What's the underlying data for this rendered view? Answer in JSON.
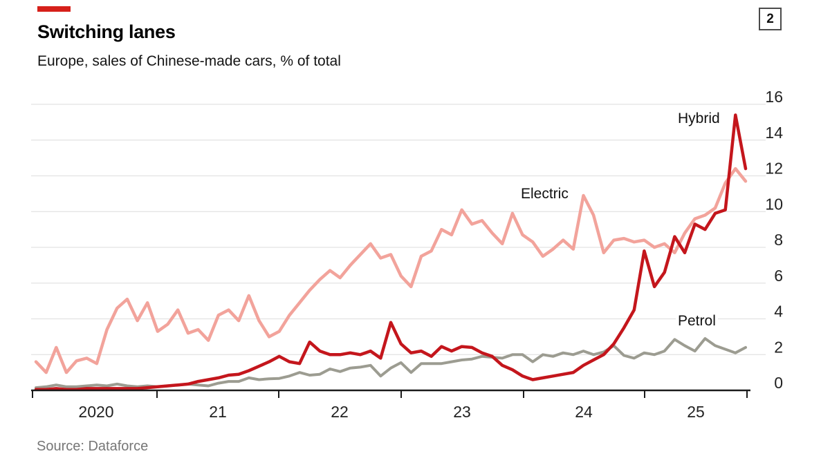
{
  "page_badge": "2",
  "footer": {
    "source": "Source: Dataforce"
  },
  "chart_data": {
    "type": "line",
    "title": "Switching lanes",
    "subtitle": "Europe, sales of Chinese-made cars, % of total",
    "source": "Source: Dataforce",
    "frequency": "monthly",
    "x_start": "2020-01",
    "x_end": "2025-11",
    "x_tick_labels": [
      "2020",
      "21",
      "22",
      "23",
      "24",
      "25"
    ],
    "y_ticks": [
      0,
      2,
      4,
      6,
      8,
      10,
      12,
      14,
      16
    ],
    "ylim": [
      0,
      16
    ],
    "grid": "horizontal",
    "legend_position": "inline-annotations",
    "colors": {
      "accent_red": "#d6201a",
      "hybrid": "#c4161c",
      "electric": "#f2a39b",
      "petrol": "#9c9c91",
      "gridline": "#e2e2e2",
      "axis": "#1a1a1a"
    },
    "series": [
      {
        "name": "Electric",
        "color": "#f2a39b",
        "values": [
          1.6,
          1.0,
          2.4,
          1.0,
          1.65,
          1.8,
          1.5,
          3.4,
          4.6,
          5.1,
          3.9,
          4.9,
          3.3,
          3.7,
          4.5,
          3.2,
          3.4,
          2.8,
          4.2,
          4.5,
          3.9,
          5.3,
          3.9,
          3.0,
          3.3,
          4.2,
          4.9,
          5.6,
          6.2,
          6.7,
          6.3,
          7.0,
          7.6,
          8.2,
          7.4,
          7.6,
          6.4,
          5.8,
          7.5,
          7.8,
          9.0,
          8.7,
          10.1,
          9.3,
          9.5,
          8.8,
          8.2,
          9.9,
          8.7,
          8.3,
          7.5,
          7.9,
          8.4,
          7.9,
          10.9,
          9.8,
          7.7,
          8.4,
          8.5,
          8.3,
          8.4,
          8.0,
          8.2,
          7.7,
          8.8,
          9.6,
          9.8,
          10.2,
          11.6,
          12.4,
          11.7
        ]
      },
      {
        "name": "Hybrid",
        "color": "#c4161c",
        "values": [
          0.05,
          0.05,
          0.1,
          0.05,
          0.05,
          0.1,
          0.1,
          0.1,
          0.1,
          0.1,
          0.1,
          0.15,
          0.2,
          0.25,
          0.3,
          0.35,
          0.5,
          0.6,
          0.7,
          0.85,
          0.9,
          1.1,
          1.35,
          1.6,
          1.9,
          1.6,
          1.5,
          2.7,
          2.2,
          2.0,
          2.0,
          2.1,
          2.0,
          2.2,
          1.8,
          3.8,
          2.6,
          2.1,
          2.2,
          1.9,
          2.45,
          2.2,
          2.45,
          2.4,
          2.1,
          1.9,
          1.4,
          1.15,
          0.8,
          0.6,
          0.7,
          0.8,
          0.9,
          1.0,
          1.4,
          1.7,
          2.0,
          2.6,
          3.5,
          4.5,
          7.8,
          5.8,
          6.6,
          8.6,
          7.7,
          9.3,
          9.0,
          9.9,
          10.1,
          15.4,
          12.4
        ]
      },
      {
        "name": "Petrol",
        "color": "#9c9c91",
        "values": [
          0.15,
          0.2,
          0.3,
          0.2,
          0.2,
          0.25,
          0.3,
          0.25,
          0.35,
          0.25,
          0.2,
          0.25,
          0.2,
          0.25,
          0.3,
          0.35,
          0.3,
          0.25,
          0.4,
          0.5,
          0.5,
          0.7,
          0.6,
          0.65,
          0.67,
          0.8,
          1.0,
          0.85,
          0.9,
          1.2,
          1.05,
          1.25,
          1.3,
          1.4,
          0.8,
          1.25,
          1.55,
          1.0,
          1.5,
          1.5,
          1.5,
          1.6,
          1.7,
          1.75,
          1.9,
          1.85,
          1.8,
          2.0,
          2.0,
          1.6,
          2.0,
          1.9,
          2.1,
          2.0,
          2.2,
          2.0,
          2.15,
          2.5,
          1.95,
          1.8,
          2.1,
          2.0,
          2.2,
          2.85,
          2.5,
          2.2,
          2.9,
          2.5,
          2.3,
          2.1,
          2.4
        ]
      }
    ]
  }
}
